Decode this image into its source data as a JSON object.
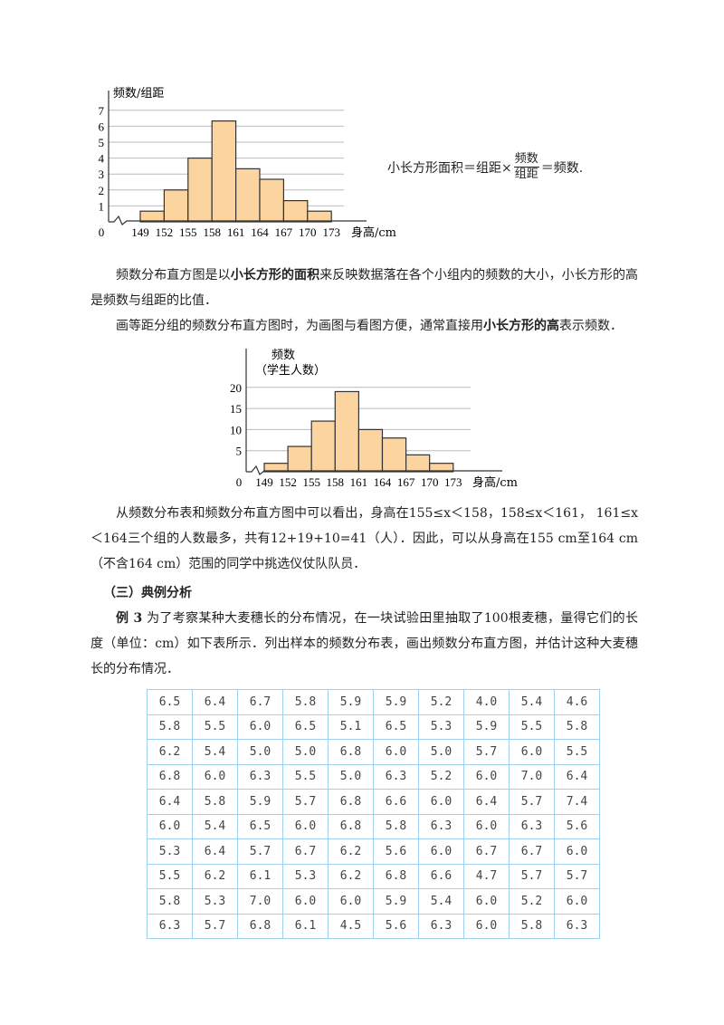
{
  "chart_data": [
    {
      "type": "bar",
      "ylabel": "频数/组距",
      "xlabel": "身高/cm",
      "origin_label": "0",
      "x_ticks": [
        "149",
        "152",
        "155",
        "158",
        "161",
        "164",
        "167",
        "170",
        "173"
      ],
      "y_ticks": [
        "1",
        "2",
        "3",
        "4",
        "5",
        "6",
        "7"
      ],
      "ylim": [
        0,
        7
      ],
      "grid": true,
      "bins": [
        [
          149,
          152
        ],
        [
          152,
          155
        ],
        [
          155,
          158
        ],
        [
          158,
          161
        ],
        [
          161,
          164
        ],
        [
          164,
          167
        ],
        [
          167,
          170
        ],
        [
          170,
          173
        ]
      ],
      "values": [
        0.67,
        2,
        4,
        6.33,
        3.33,
        2.67,
        1.33,
        0.67
      ],
      "bar_color": "#fcd4a0"
    },
    {
      "type": "bar",
      "ylabel": "频数",
      "ylabel2": "（学生人数）",
      "xlabel": "身高/cm",
      "origin_label": "0",
      "x_ticks": [
        "149",
        "152",
        "155",
        "158",
        "161",
        "164",
        "167",
        "170",
        "173"
      ],
      "y_ticks": [
        "5",
        "10",
        "15",
        "20"
      ],
      "ylim": [
        0,
        25
      ],
      "grid": true,
      "bins": [
        [
          149,
          152
        ],
        [
          152,
          155
        ],
        [
          155,
          158
        ],
        [
          158,
          161
        ],
        [
          161,
          164
        ],
        [
          164,
          167
        ],
        [
          167,
          170
        ],
        [
          170,
          173
        ]
      ],
      "values": [
        2,
        6,
        12,
        19,
        10,
        8,
        4,
        2
      ],
      "bar_color": "#fcd4a0"
    }
  ],
  "formula": {
    "lhs": "小长方形面积＝组距×",
    "num": "频数",
    "den": "组距",
    "rhs": "＝频数."
  },
  "p1": {
    "a": "频数分布直方图是以",
    "b": "小长方形的面积",
    "c": "来反映数据落在各个小组内的频数的大小，小长方形的高是频数与组距的比值．"
  },
  "p2": {
    "a": "画等距分组的频数分布直方图时，为画图与看图方便，通常直接用",
    "b": "小长方形的高",
    "c": "表示频数．"
  },
  "p3": "从频数分布表和频数分布直方图中可以看出，身高在155≤x＜158，158≤x＜161， 161≤x＜164三个组的人数最多，共有12+19+10=41（人）．因此，可以从身高在155 cm至164 cm（不含164 cm）范围的同学中挑选仪仗队队员．",
  "heading": "（三）典例分析",
  "example": {
    "label": "例 3",
    "text": " 为了考察某种大麦穗长的分布情况，在一块试验田里抽取了100根麦穗，量得它们的长度（单位：cm）如下表所示．列出样本的频数分布表，画出频数分布直方图，并估计这种大麦穗长的分布情况．"
  },
  "table": [
    [
      "6.5",
      "6.4",
      "6.7",
      "5.8",
      "5.9",
      "5.9",
      "5.2",
      "4.0",
      "5.4",
      "4.6"
    ],
    [
      "5.8",
      "5.5",
      "6.0",
      "6.5",
      "5.1",
      "6.5",
      "5.3",
      "5.9",
      "5.5",
      "5.8"
    ],
    [
      "6.2",
      "5.4",
      "5.0",
      "5.0",
      "6.8",
      "6.0",
      "5.0",
      "5.7",
      "6.0",
      "5.5"
    ],
    [
      "6.8",
      "6.0",
      "6.3",
      "5.5",
      "5.0",
      "6.3",
      "5.2",
      "6.0",
      "7.0",
      "6.4"
    ],
    [
      "6.4",
      "5.8",
      "5.9",
      "5.7",
      "6.8",
      "6.6",
      "6.0",
      "6.4",
      "5.7",
      "7.4"
    ],
    [
      "6.0",
      "5.4",
      "6.5",
      "6.0",
      "6.8",
      "5.8",
      "6.3",
      "6.0",
      "6.3",
      "5.6"
    ],
    [
      "5.3",
      "6.4",
      "5.7",
      "6.7",
      "6.2",
      "5.6",
      "6.0",
      "6.7",
      "6.7",
      "6.0"
    ],
    [
      "5.5",
      "6.2",
      "6.1",
      "5.3",
      "6.2",
      "6.8",
      "6.6",
      "4.7",
      "5.7",
      "5.7"
    ],
    [
      "5.8",
      "5.3",
      "7.0",
      "6.0",
      "6.0",
      "5.9",
      "5.4",
      "6.0",
      "5.2",
      "6.0"
    ],
    [
      "6.3",
      "5.7",
      "6.8",
      "6.1",
      "4.5",
      "5.6",
      "6.3",
      "6.0",
      "5.8",
      "6.3"
    ]
  ]
}
